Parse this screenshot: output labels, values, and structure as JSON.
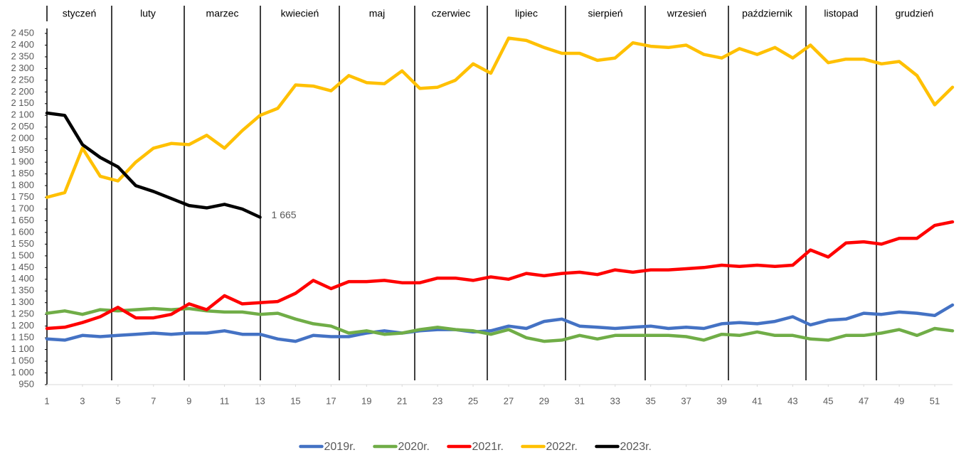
{
  "chart_data": {
    "type": "line",
    "months": [
      "styczeń",
      "luty",
      "marzec",
      "kwiecień",
      "maj",
      "czerwiec",
      "lipiec",
      "sierpień",
      "wrzesień",
      "październik",
      "listopad",
      "grudzień"
    ],
    "x": [
      1,
      2,
      3,
      4,
      5,
      6,
      7,
      8,
      9,
      10,
      11,
      12,
      13,
      14,
      15,
      16,
      17,
      18,
      19,
      20,
      21,
      22,
      23,
      24,
      25,
      26,
      27,
      28,
      29,
      30,
      31,
      32,
      33,
      34,
      35,
      36,
      37,
      38,
      39,
      40,
      41,
      42,
      43,
      44,
      45,
      46,
      47,
      48,
      49,
      50,
      51,
      52
    ],
    "xlim": [
      1,
      52
    ],
    "xticks": [
      1,
      3,
      5,
      7,
      9,
      11,
      13,
      15,
      17,
      19,
      21,
      23,
      25,
      27,
      29,
      31,
      33,
      35,
      37,
      39,
      41,
      43,
      45,
      47,
      49,
      51
    ],
    "ylim": [
      950,
      2450
    ],
    "yticks": [
      {
        "value": 950,
        "label": "950"
      },
      {
        "value": 1000,
        "label": "1 000"
      },
      {
        "value": 1050,
        "label": "1 050"
      },
      {
        "value": 1100,
        "label": "1 100"
      },
      {
        "value": 1150,
        "label": "1 150"
      },
      {
        "value": 1200,
        "label": "1 200"
      },
      {
        "value": 1250,
        "label": "1 250"
      },
      {
        "value": 1300,
        "label": "1 300"
      },
      {
        "value": 1350,
        "label": "1 350"
      },
      {
        "value": 1400,
        "label": "1 400"
      },
      {
        "value": 1450,
        "label": "1 450"
      },
      {
        "value": 1500,
        "label": "1 500"
      },
      {
        "value": 1550,
        "label": "1 550"
      },
      {
        "value": 1600,
        "label": "1 600"
      },
      {
        "value": 1650,
        "label": "1 650"
      },
      {
        "value": 1700,
        "label": "1 700"
      },
      {
        "value": 1750,
        "label": "1 750"
      },
      {
        "value": 1800,
        "label": "1 800"
      },
      {
        "value": 1850,
        "label": "1 850"
      },
      {
        "value": 1900,
        "label": "1 900"
      },
      {
        "value": 1950,
        "label": "1 950"
      },
      {
        "value": 2000,
        "label": "2 000"
      },
      {
        "value": 2050,
        "label": "2 050"
      },
      {
        "value": 2100,
        "label": "2 100"
      },
      {
        "value": 2150,
        "label": "2 150"
      },
      {
        "value": 2200,
        "label": "2 200"
      },
      {
        "value": 2250,
        "label": "2 250"
      },
      {
        "value": 2300,
        "label": "2 300"
      },
      {
        "value": 2350,
        "label": "2 350"
      },
      {
        "value": 2400,
        "label": "2 400"
      },
      {
        "value": 2450,
        "label": "2 450"
      }
    ],
    "legend": "bottom",
    "series": [
      {
        "name": "2019r.",
        "color": "#4472c4",
        "values": [
          1145,
          1140,
          1160,
          1155,
          1160,
          1165,
          1170,
          1165,
          1170,
          1170,
          1180,
          1165,
          1165,
          1145,
          1135,
          1160,
          1155,
          1155,
          1170,
          1180,
          1170,
          1180,
          1185,
          1185,
          1175,
          1180,
          1200,
          1190,
          1220,
          1230,
          1200,
          1195,
          1190,
          1195,
          1200,
          1190,
          1195,
          1190,
          1210,
          1215,
          1210,
          1220,
          1240,
          1205,
          1225,
          1230,
          1255,
          1250,
          1260,
          1255,
          1245,
          1290
        ]
      },
      {
        "name": "2020r.",
        "color": "#70ad47",
        "values": [
          1255,
          1265,
          1250,
          1270,
          1265,
          1270,
          1275,
          1270,
          1275,
          1265,
          1260,
          1260,
          1250,
          1255,
          1230,
          1210,
          1200,
          1170,
          1180,
          1165,
          1170,
          1185,
          1195,
          1185,
          1180,
          1165,
          1185,
          1150,
          1135,
          1140,
          1160,
          1145,
          1160,
          1160,
          1160,
          1160,
          1155,
          1140,
          1165,
          1160,
          1175,
          1160,
          1160,
          1145,
          1140,
          1160,
          1160,
          1170,
          1185,
          1160,
          1190,
          1180
        ]
      },
      {
        "name": "2021r.",
        "color": "#ff0000",
        "values": [
          1190,
          1195,
          1215,
          1240,
          1280,
          1235,
          1235,
          1250,
          1295,
          1270,
          1330,
          1295,
          1300,
          1305,
          1340,
          1395,
          1360,
          1390,
          1390,
          1395,
          1385,
          1385,
          1405,
          1405,
          1395,
          1410,
          1400,
          1425,
          1415,
          1425,
          1430,
          1420,
          1440,
          1430,
          1440,
          1440,
          1445,
          1450,
          1460,
          1455,
          1460,
          1455,
          1460,
          1525,
          1495,
          1555,
          1560,
          1550,
          1575,
          1575,
          1630,
          1645
        ]
      },
      {
        "name": "2022r.",
        "color": "#ffc000",
        "values": [
          1750,
          1770,
          1960,
          1840,
          1820,
          1900,
          1960,
          1980,
          1975,
          2015,
          1960,
          2035,
          2100,
          2130,
          2230,
          2225,
          2205,
          2270,
          2240,
          2235,
          2290,
          2215,
          2220,
          2250,
          2320,
          2280,
          2430,
          2420,
          2390,
          2365,
          2365,
          2335,
          2345,
          2410,
          2395,
          2390,
          2400,
          2360,
          2345,
          2385,
          2360,
          2390,
          2345,
          2400,
          2325,
          2340,
          2340,
          2320,
          2330,
          2270,
          2145,
          2220
        ]
      },
      {
        "name": "2023r.",
        "color": "#000000",
        "values": [
          2110,
          2100,
          1975,
          1920,
          1880,
          1800,
          1775,
          1745,
          1715,
          1705,
          1720,
          1700,
          1665,
          null,
          null,
          null,
          null,
          null,
          null,
          null,
          null,
          null,
          null,
          null,
          null,
          null,
          null,
          null,
          null,
          null,
          null,
          null,
          null,
          null,
          null,
          null,
          null,
          null,
          null,
          null,
          null,
          null,
          null,
          null,
          null,
          null,
          null,
          null,
          null,
          null,
          null,
          null
        ],
        "value_labels": [
          null,
          null,
          null,
          null,
          null,
          null,
          null,
          null,
          null,
          null,
          null,
          null,
          "1 665",
          null,
          null,
          null,
          null,
          null,
          null,
          null,
          null,
          null,
          null,
          null,
          null,
          null,
          null,
          null,
          null,
          null,
          null,
          null,
          null,
          null,
          null,
          null,
          null,
          null,
          null,
          null,
          null,
          null,
          null,
          null,
          null,
          null,
          null,
          null,
          null,
          null,
          null,
          null
        ]
      }
    ]
  }
}
